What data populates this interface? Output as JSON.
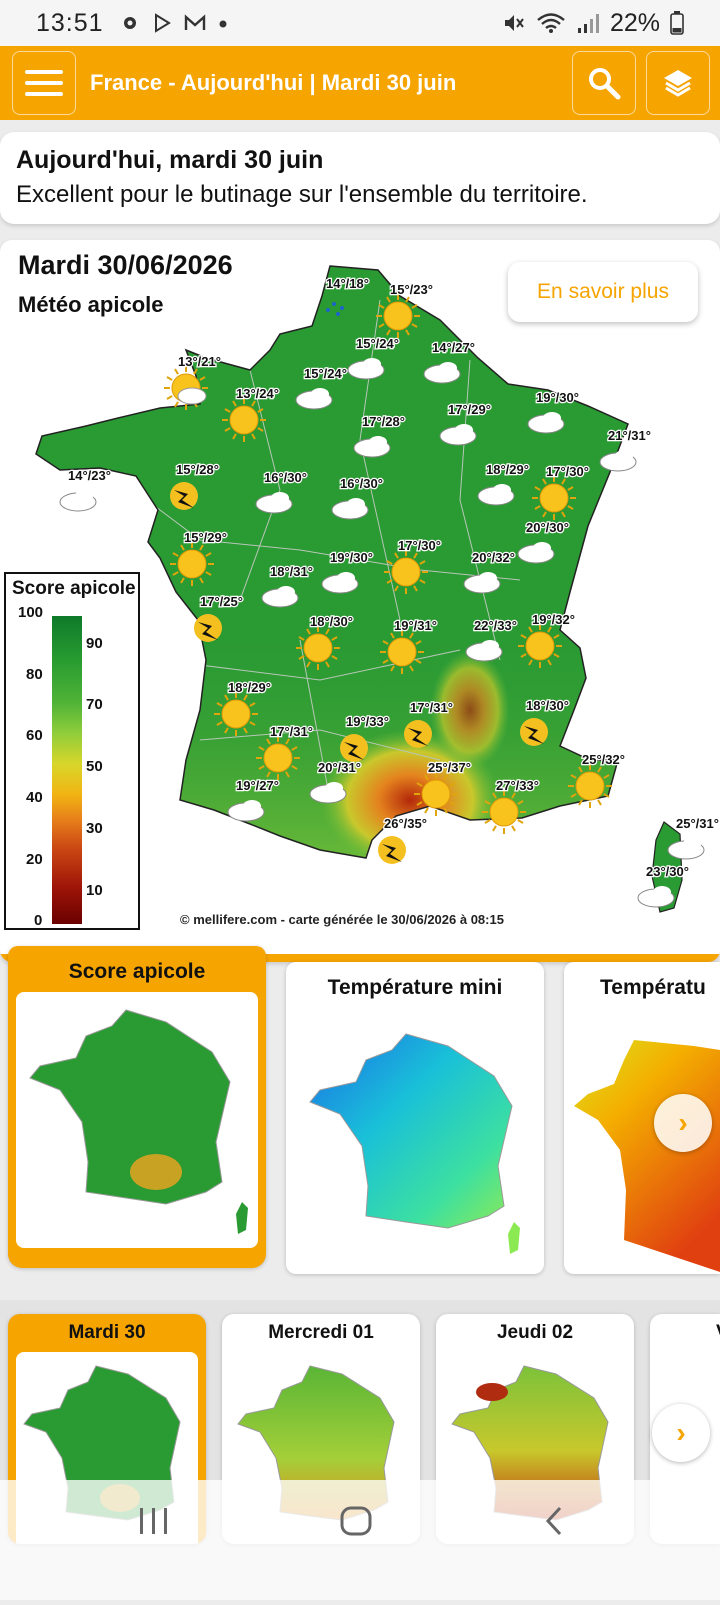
{
  "status": {
    "time": "13:51",
    "battery": "22%"
  },
  "appbar": {
    "title": "France - Aujourd'hui | Mardi 30 juin"
  },
  "summary": {
    "title": "Aujourd'hui, mardi 30 juin",
    "text": "Excellent pour le butinage sur l'ensemble du territoire."
  },
  "map": {
    "date": "Mardi 30/06/2026",
    "subtitle": "Météo apicole",
    "info_button": "En savoir plus",
    "copyright": "© mellifere.com - carte générée le 30/06/2026 à 08:15",
    "legend": {
      "title": "Score apicole",
      "left_ticks": [
        "100",
        "80",
        "60",
        "40",
        "20",
        "0"
      ],
      "right_ticks": [
        "90",
        "70",
        "50",
        "30",
        "10"
      ]
    },
    "stations": [
      {
        "t": "14°/18°",
        "icon": "rain"
      },
      {
        "t": "15°/23°",
        "icon": "sun"
      },
      {
        "t": "15°/24°",
        "icon": "cloud"
      },
      {
        "t": "14°/27°",
        "icon": "cloud"
      },
      {
        "t": "13°/21°",
        "icon": "suncloud"
      },
      {
        "t": "15°/24°",
        "icon": "cloud"
      },
      {
        "t": "13°/24°",
        "icon": "sun"
      },
      {
        "t": "17°/28°",
        "icon": "cloud"
      },
      {
        "t": "17°/29°",
        "icon": "cloud"
      },
      {
        "t": "19°/30°",
        "icon": "cloud"
      },
      {
        "t": "21°/31°",
        "icon": "cloud"
      },
      {
        "t": "14°/23°",
        "icon": "cloud"
      },
      {
        "t": "15°/28°",
        "icon": "storm"
      },
      {
        "t": "16°/30°",
        "icon": "cloud"
      },
      {
        "t": "16°/30°",
        "icon": "cloud"
      },
      {
        "t": "18°/29°",
        "icon": "cloud"
      },
      {
        "t": "17°/30°",
        "icon": "sun"
      },
      {
        "t": "20°/30°",
        "icon": "cloud"
      },
      {
        "t": "15°/29°",
        "icon": "sun"
      },
      {
        "t": "19°/30°",
        "icon": "cloud"
      },
      {
        "t": "17°/30°",
        "icon": "sun"
      },
      {
        "t": "20°/32°",
        "icon": "cloud"
      },
      {
        "t": "18°/31°",
        "icon": "cloud"
      },
      {
        "t": "17°/25°",
        "icon": "storm"
      },
      {
        "t": "18°/30°",
        "icon": "sun"
      },
      {
        "t": "19°/31°",
        "icon": "sun"
      },
      {
        "t": "22°/33°",
        "icon": "cloud"
      },
      {
        "t": "19°/32°",
        "icon": "sun"
      },
      {
        "t": "18°/29°",
        "icon": "sun"
      },
      {
        "t": "17°/31°",
        "icon": "storm"
      },
      {
        "t": "18°/30°",
        "icon": "storm"
      },
      {
        "t": "17°/31°",
        "icon": "sun"
      },
      {
        "t": "19°/33°",
        "icon": "storm"
      },
      {
        "t": "20°/31°",
        "icon": "cloud"
      },
      {
        "t": "25°/37°",
        "icon": "sun"
      },
      {
        "t": "25°/32°",
        "icon": "sun"
      },
      {
        "t": "19°/27°",
        "icon": "cloud"
      },
      {
        "t": "27°/33°",
        "icon": "sun"
      },
      {
        "t": "26°/35°",
        "icon": "storm"
      },
      {
        "t": "25°/31°",
        "icon": "cloud"
      },
      {
        "t": "23°/30°",
        "icon": "cloud"
      }
    ]
  },
  "categories": {
    "active": "Score apicole",
    "items": [
      "Score apicole",
      "Température mini",
      "Températu"
    ]
  },
  "days": {
    "items": [
      "Mardi 30",
      "Mercredi 01",
      "Jeudi 02",
      "V"
    ]
  },
  "colors": {
    "accent": "#f6a400",
    "map_green": "#2a9a33"
  },
  "icons": [
    "menu-icon",
    "search-icon",
    "layers-icon",
    "chevron-right-icon",
    "recents-icon",
    "home-icon",
    "back-icon"
  ]
}
